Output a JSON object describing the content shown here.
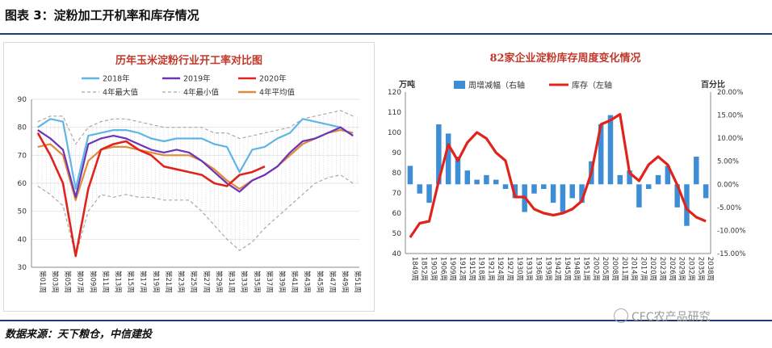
{
  "figure_title": "图表 3：淀粉加工开机率和库存情况",
  "source": "数据来源：天下粮仓，中信建投",
  "watermark": "CFC农产品研究",
  "colors": {
    "accent": "#1f3b73"
  },
  "chart_data": [
    {
      "type": "line",
      "title": "历年玉米淀粉行业开工率对比图",
      "categories": [
        "第01周",
        "第03周",
        "第05周",
        "第07周",
        "第09周",
        "第11周",
        "第13周",
        "第15周",
        "第17周",
        "第19周",
        "第21周",
        "第23周",
        "第25周",
        "第27周",
        "第29周",
        "第31周",
        "第33周",
        "第35周",
        "第37周",
        "第39周",
        "第41周",
        "第43周",
        "第45周",
        "第47周",
        "第49周",
        "第51周"
      ],
      "ylim": [
        30,
        90
      ],
      "yticks": [
        30,
        40,
        50,
        60,
        70,
        80,
        90
      ],
      "legend_position": "top",
      "series": [
        {
          "name": "2018年",
          "color": "#5fb6e6",
          "style": "solid",
          "values": [
            80,
            83,
            82,
            58,
            77,
            78,
            79,
            79,
            78,
            76,
            75,
            76,
            76,
            76,
            74,
            73,
            64,
            72,
            73,
            76,
            78,
            83,
            82,
            81,
            80,
            77
          ]
        },
        {
          "name": "2019年",
          "color": "#6a35b8",
          "style": "solid",
          "values": [
            79,
            76,
            72,
            55,
            74,
            76,
            77,
            76,
            74,
            72,
            71,
            72,
            71,
            68,
            64,
            60,
            57,
            61,
            63,
            66,
            71,
            75,
            76,
            78,
            80,
            77
          ]
        },
        {
          "name": "2020年",
          "color": "#e0241c",
          "style": "solid",
          "values": [
            78,
            70,
            60,
            34,
            58,
            72,
            74,
            75,
            72,
            70,
            66,
            65,
            64,
            63,
            60,
            59,
            63,
            64,
            66,
            null,
            null,
            null,
            null,
            null,
            null,
            null
          ]
        },
        {
          "name": "4年最大值",
          "color": "#a8a8a8",
          "style": "dashed",
          "values": [
            82,
            84,
            84,
            74,
            80,
            82,
            83,
            83,
            82,
            81,
            80,
            80,
            80,
            80,
            78,
            78,
            76,
            77,
            78,
            79,
            80,
            83,
            84,
            85,
            86,
            84
          ]
        },
        {
          "name": "4年最小值",
          "color": "#a8a8a8",
          "style": "dashed",
          "values": [
            59,
            56,
            52,
            34,
            50,
            56,
            55,
            56,
            55,
            55,
            54,
            54,
            54,
            50,
            45,
            40,
            36,
            39,
            44,
            48,
            52,
            56,
            60,
            62,
            63,
            60
          ]
        },
        {
          "name": "4年平均值",
          "color": "#e08a3c",
          "style": "solid",
          "values": [
            73,
            74,
            70,
            54,
            68,
            72,
            73,
            73,
            72,
            71,
            70,
            70,
            70,
            68,
            65,
            61,
            58,
            61,
            63,
            66,
            70,
            74,
            76,
            78,
            79,
            78
          ]
        }
      ]
    },
    {
      "type": "bar",
      "title": "82家企业淀粉库存周度变化情况",
      "ylabel": "万吨",
      "y2label": "百分比",
      "ylim": [
        40,
        120
      ],
      "yticks": [
        40,
        50,
        60,
        70,
        80,
        90,
        100,
        110,
        120
      ],
      "y2lim": [
        -15,
        20
      ],
      "y2ticks": [
        "-15.00%",
        "-10.00%",
        "-5.00%",
        "0.00%",
        "5.00%",
        "10.00%",
        "15.00%",
        "20.00%"
      ],
      "categories": [
        "1849周",
        "1852周",
        "1903周",
        "1906周",
        "1909周",
        "1912周",
        "1915周",
        "1918周",
        "1921周",
        "1924周",
        "1927周",
        "1930周",
        "1933周",
        "1936周",
        "1939周",
        "1942周",
        "1945周",
        "1948周",
        "1951周",
        "2002周",
        "2005周",
        "2008周",
        "2011周",
        "2014周",
        "2017周",
        "2020周",
        "2023周",
        "2026周",
        "2029周",
        "2032周",
        "2035周",
        "2038周"
      ],
      "legend_position": "top",
      "series": [
        {
          "name": "周增减幅（右轴",
          "color": "#3e8ed6",
          "axis": "right",
          "values": [
            4,
            -2,
            -4,
            13,
            11,
            6,
            3,
            1,
            2,
            1,
            -1,
            -3,
            -6,
            -2,
            -1,
            -4,
            -6,
            -3,
            -4,
            5,
            13,
            15,
            2,
            3,
            -5,
            -1,
            2,
            4,
            -5,
            -9,
            6,
            -3
          ]
        },
        {
          "name": "库存（左轴",
          "color": "#e0241c",
          "axis": "left",
          "values": [
            48,
            55,
            56,
            76,
            94,
            86,
            95,
            100,
            97,
            90,
            86,
            68,
            68,
            62,
            60,
            59,
            60,
            62,
            66,
            80,
            104,
            106,
            109,
            80,
            76,
            84,
            88,
            84,
            74,
            62,
            58,
            56
          ]
        }
      ]
    }
  ]
}
